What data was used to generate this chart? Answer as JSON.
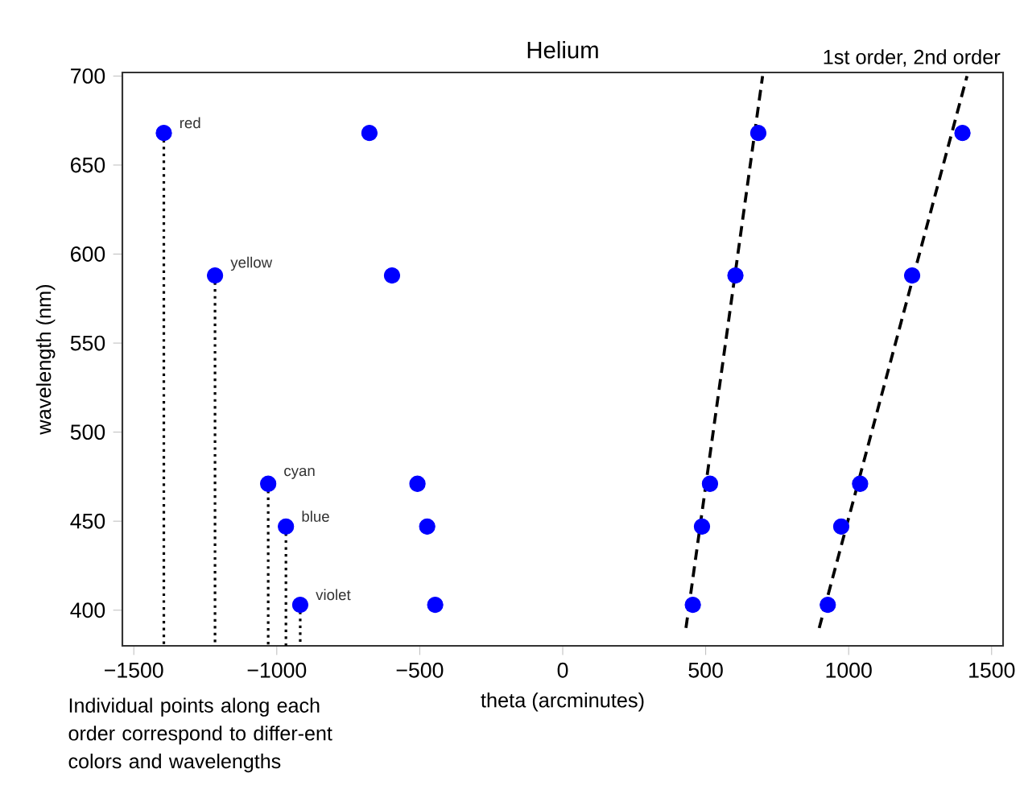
{
  "chart_data": {
    "type": "scatter",
    "title": "Helium",
    "xlabel": "theta (arcminutes)",
    "ylabel": "wavelength (nm)",
    "xlim": [
      -1540,
      1540
    ],
    "ylim": [
      380,
      702
    ],
    "xticks": [
      {
        "value": -1500,
        "label": "−1500"
      },
      {
        "value": -1000,
        "label": "−1000"
      },
      {
        "value": -500,
        "label": "−500"
      },
      0,
      500,
      1000,
      1500
    ],
    "yticks": [
      400,
      450,
      500,
      550,
      600,
      650,
      700
    ],
    "grid": false,
    "series": [
      {
        "type": "scatter",
        "color": "#0000ff",
        "marker": "circle",
        "x": [
          -1395,
          -1216,
          -1030,
          -968,
          -918,
          -676,
          -597,
          -508,
          -474,
          -446,
          684,
          604,
          515,
          487,
          455,
          1398,
          1222,
          1040,
          974,
          927
        ],
        "values": [
          668,
          588,
          471,
          447,
          403,
          668,
          588,
          471,
          447,
          403,
          668,
          588,
          471,
          447,
          403,
          668,
          588,
          471,
          447,
          403
        ]
      },
      {
        "type": "line",
        "color": "#000000",
        "line_style": "dashed",
        "x": [
          431,
          699
        ],
        "values": [
          390,
          700
        ]
      },
      {
        "type": "line",
        "color": "#000000",
        "line_style": "dashed",
        "x": [
          897,
          1414
        ],
        "values": [
          390,
          700
        ]
      },
      {
        "type": "line",
        "color": "#000000",
        "line_style": "dotted",
        "x": [
          -1395,
          -1395
        ],
        "values": [
          668,
          380
        ]
      },
      {
        "type": "line",
        "color": "#000000",
        "line_style": "dotted",
        "x": [
          -1216,
          -1216
        ],
        "values": [
          588,
          380
        ]
      },
      {
        "type": "line",
        "color": "#000000",
        "line_style": "dotted",
        "x": [
          -1030,
          -1030
        ],
        "values": [
          471,
          380
        ]
      },
      {
        "type": "line",
        "color": "#000000",
        "line_style": "dotted",
        "x": [
          -968,
          -968
        ],
        "values": [
          447,
          380
        ]
      },
      {
        "type": "line",
        "color": "#000000",
        "line_style": "dotted",
        "x": [
          -918,
          -918
        ],
        "values": [
          403,
          380
        ]
      }
    ],
    "annotations": [
      {
        "text": "red",
        "x": -1395,
        "y": 668
      },
      {
        "text": "yellow",
        "x": -1216,
        "y": 588
      },
      {
        "text": "cyan",
        "x": -1030,
        "y": 471
      },
      {
        "text": "blue",
        "x": -968,
        "y": 447
      },
      {
        "text": "violet",
        "x": -918,
        "y": 403
      },
      "1st order, 2nd order",
      "Individual points along each order correspond to differ-ent colors and wavelengths"
    ]
  }
}
